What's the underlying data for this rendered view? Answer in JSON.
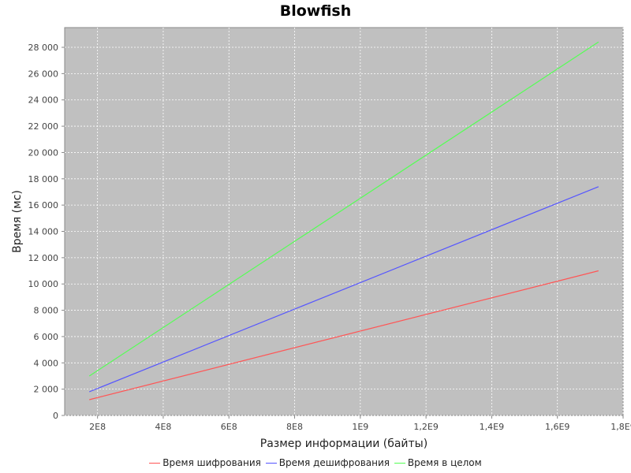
{
  "chart_data": {
    "type": "line",
    "title": "Blowfish",
    "xlabel": "Размер информации (байты)",
    "ylabel": "Время (мс)",
    "xlim": [
      100000000,
      1800000000
    ],
    "ylim": [
      0,
      29500
    ],
    "xticks": [
      {
        "value": 200000000,
        "label": "2E8"
      },
      {
        "value": 400000000,
        "label": "4E8"
      },
      {
        "value": 600000000,
        "label": "6E8"
      },
      {
        "value": 800000000,
        "label": "8E8"
      },
      {
        "value": 1000000000,
        "label": "1E9"
      },
      {
        "value": 1200000000,
        "label": "1,2E9"
      },
      {
        "value": 1400000000,
        "label": "1,4E9"
      },
      {
        "value": 1600000000,
        "label": "1,6E9"
      },
      {
        "value": 1800000000,
        "label": "1,8E9"
      }
    ],
    "yticks": [
      {
        "value": 0,
        "label": "0"
      },
      {
        "value": 2000,
        "label": "2 000"
      },
      {
        "value": 4000,
        "label": "4 000"
      },
      {
        "value": 6000,
        "label": "6 000"
      },
      {
        "value": 8000,
        "label": "8 000"
      },
      {
        "value": 10000,
        "label": "10 000"
      },
      {
        "value": 12000,
        "label": "12 000"
      },
      {
        "value": 14000,
        "label": "14 000"
      },
      {
        "value": 16000,
        "label": "16 000"
      },
      {
        "value": 18000,
        "label": "18 000"
      },
      {
        "value": 20000,
        "label": "20 000"
      },
      {
        "value": 22000,
        "label": "22 000"
      },
      {
        "value": 24000,
        "label": "24 000"
      },
      {
        "value": 26000,
        "label": "26 000"
      },
      {
        "value": 28000,
        "label": "28 000"
      }
    ],
    "grid": true,
    "legend_position": "bottom",
    "plot_background": "#c0c0c0",
    "series": [
      {
        "name": "Время шифрования",
        "color": "#ff5555",
        "x": [
          175000000,
          1725000000
        ],
        "y": [
          1200,
          11000
        ]
      },
      {
        "name": "Время дешифрования",
        "color": "#5555ff",
        "x": [
          175000000,
          1725000000
        ],
        "y": [
          1800,
          17400
        ]
      },
      {
        "name": "Время в целом",
        "color": "#55ff55",
        "x": [
          175000000,
          1725000000
        ],
        "y": [
          3000,
          28400
        ]
      }
    ]
  }
}
